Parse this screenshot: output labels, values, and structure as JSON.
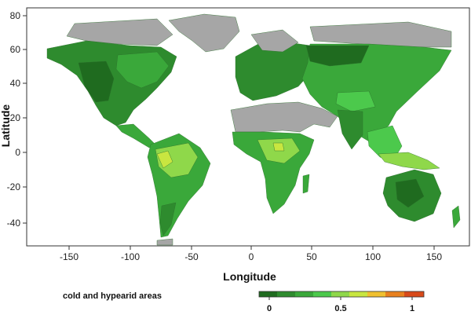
{
  "map": {
    "xlabel": "Longitude",
    "ylabel": "Latitude",
    "xticks": [
      -150,
      -100,
      -50,
      0,
      50,
      100,
      150
    ],
    "yticks": [
      -40,
      -20,
      0,
      20,
      40,
      60,
      80
    ],
    "xlim": [
      -180,
      180
    ],
    "ylim": [
      -55,
      90
    ],
    "no_data_color": "#a6a6a6",
    "ocean_color": "#ffffff"
  },
  "legend": {
    "note": "cold and hypearid areas",
    "colorbar_ticks": [
      "0",
      "0.5",
      "1"
    ],
    "colorbar_colors": [
      "#1f6b1f",
      "#2e8b2e",
      "#3aa83a",
      "#4cc94c",
      "#8fd84a",
      "#c8e640",
      "#f0c030",
      "#e8801e",
      "#d84a1a"
    ]
  }
}
